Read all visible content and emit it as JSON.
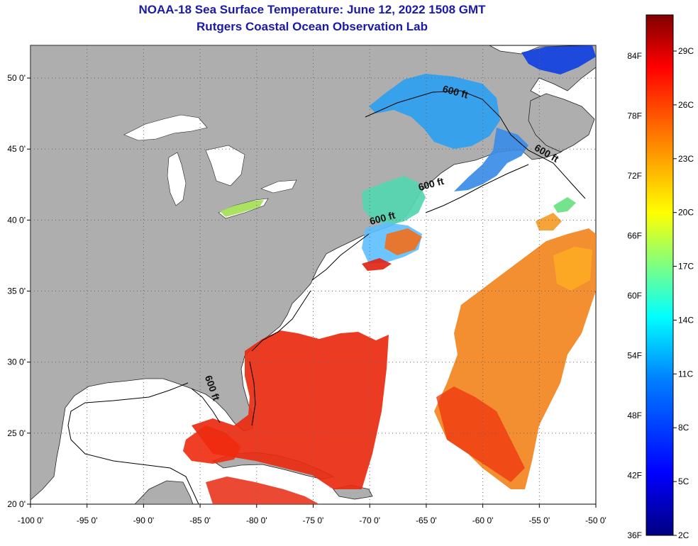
{
  "header": {
    "title": "NOAA-18 Sea Surface Temperature:  June 12, 2022 1508 GMT",
    "subtitle": "Rutgers Coastal Ocean Observation Lab"
  },
  "map": {
    "lon_range": [
      -100,
      -50
    ],
    "lat_range": [
      20,
      52.3
    ],
    "lon_ticks": [
      {
        "value": -100,
        "label": "-100 0'"
      },
      {
        "value": -95,
        "label": "-95 0'"
      },
      {
        "value": -90,
        "label": "-90 0'"
      },
      {
        "value": -85,
        "label": "-85 0'"
      },
      {
        "value": -80,
        "label": "-80 0'"
      },
      {
        "value": -75,
        "label": "-75 0'"
      },
      {
        "value": -70,
        "label": "-70 0'"
      },
      {
        "value": -65,
        "label": "-65 0'"
      },
      {
        "value": -60,
        "label": "-60 0'"
      },
      {
        "value": -55,
        "label": "-55 0'"
      },
      {
        "value": -50,
        "label": "-50 0'"
      }
    ],
    "lat_ticks": [
      {
        "value": 50,
        "label": "50 0'"
      },
      {
        "value": 45,
        "label": "45 0'"
      },
      {
        "value": 40,
        "label": "40 0'"
      },
      {
        "value": 35,
        "label": "35 0'"
      },
      {
        "value": 30,
        "label": "30 0'"
      },
      {
        "value": 25,
        "label": "25 0'"
      },
      {
        "value": 20,
        "label": "20 0'"
      }
    ],
    "isobath_labels": [
      {
        "text": "600 ft",
        "lon": -62.5,
        "lat": 48.8
      },
      {
        "text": "600 ft",
        "lon": -54.5,
        "lat": 44.5
      },
      {
        "text": "600 ft",
        "lon": -64.5,
        "lat": 42.3
      },
      {
        "text": "600 ft",
        "lon": -68.8,
        "lat": 39.9
      },
      {
        "text": "600 ft",
        "lon": -84.2,
        "lat": 28.1
      }
    ],
    "colors": {
      "land": "#aeaeae",
      "ocean_nodata": "#ffffff",
      "grid": "#666666"
    }
  },
  "colorbar": {
    "f_labels": [
      "84F",
      "78F",
      "72F",
      "66F",
      "60F",
      "54F",
      "48F",
      "42F",
      "36F"
    ],
    "c_labels": [
      "29C",
      "26C",
      "23C",
      "20C",
      "17C",
      "14C",
      "11C",
      "8C",
      "5C",
      "2C"
    ],
    "range_c": [
      2,
      31
    ],
    "stops": [
      "#000080",
      "#0000ff",
      "#0080ff",
      "#00ffff",
      "#80ff80",
      "#ffff00",
      "#ff8000",
      "#ff0000",
      "#800000"
    ]
  }
}
